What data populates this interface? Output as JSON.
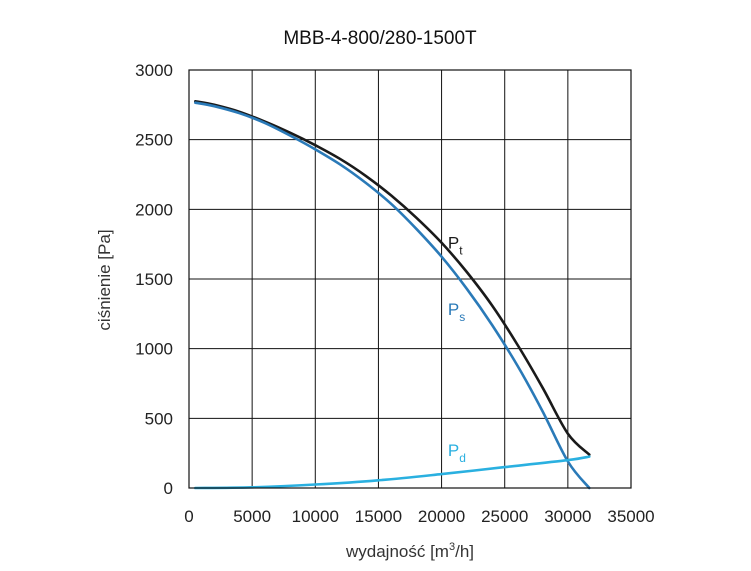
{
  "chart_data": {
    "type": "line",
    "title": "MBB-4-800/280-1500T",
    "xlabel": {
      "prefix": "wydajność [m",
      "sup": "3",
      "suffix": "/h]"
    },
    "ylabel": "ciśnienie [Pa]",
    "xlim": [
      0,
      35000
    ],
    "ylim": [
      0,
      3000
    ],
    "x_ticks": [
      0,
      5000,
      10000,
      15000,
      20000,
      25000,
      30000,
      35000
    ],
    "y_ticks": [
      0,
      500,
      1000,
      1500,
      2000,
      2500,
      3000
    ],
    "x_tick_labels": [
      "0",
      "5000",
      "10000",
      "15000",
      "20000",
      "25000",
      "30000",
      "35000"
    ],
    "y_tick_labels": [
      "0",
      "500",
      "1000",
      "1500",
      "2000",
      "2500",
      "3000"
    ],
    "grid": true,
    "series": [
      {
        "name": "Pt",
        "label_main": "P",
        "label_sub": "t",
        "label_anchor": [
          20500,
          1720
        ],
        "color": "#1a1a1a",
        "x": [
          500,
          2000,
          4000,
          6000,
          8000,
          10000,
          12000,
          14000,
          16000,
          18000,
          20000,
          22000,
          24000,
          26000,
          28000,
          30000,
          31700
        ],
        "y": [
          2775,
          2750,
          2700,
          2630,
          2550,
          2460,
          2360,
          2240,
          2100,
          1940,
          1760,
          1550,
          1310,
          1030,
          720,
          390,
          240
        ]
      },
      {
        "name": "Ps",
        "label_main": "P",
        "label_sub": "s",
        "label_anchor": [
          20500,
          1240
        ],
        "color": "#2a7ab8",
        "x": [
          500,
          2000,
          4000,
          6000,
          8000,
          10000,
          12000,
          14000,
          16000,
          18000,
          20000,
          22000,
          24000,
          26000,
          28000,
          30000,
          31700
        ],
        "y": [
          2765,
          2740,
          2690,
          2620,
          2530,
          2430,
          2320,
          2190,
          2040,
          1860,
          1660,
          1430,
          1170,
          880,
          550,
          190,
          0
        ]
      },
      {
        "name": "Pd",
        "label_main": "P",
        "label_sub": "d",
        "label_anchor": [
          20500,
          230
        ],
        "color": "#2ab0e0",
        "x": [
          500,
          5000,
          10000,
          15000,
          20000,
          25000,
          30000,
          31700
        ],
        "y": [
          0,
          5,
          25,
          55,
          100,
          150,
          200,
          225
        ]
      }
    ]
  }
}
